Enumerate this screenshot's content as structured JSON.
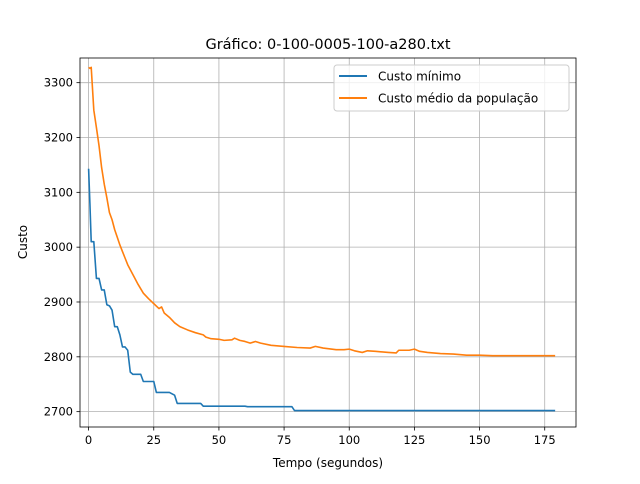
{
  "chart_data": {
    "type": "line",
    "title": "Gráfico: 0-100-0005-100-a280.txt",
    "xlabel": "Tempo (segundos)",
    "ylabel": "Custo",
    "xlim": [
      -3.3,
      187
    ],
    "ylim": [
      2672,
      3345
    ],
    "xticks": [
      0,
      25,
      50,
      75,
      100,
      125,
      150,
      175
    ],
    "xtick_labels": [
      "0",
      "25",
      "50",
      "75",
      "100",
      "125",
      "150",
      "175"
    ],
    "yticks": [
      2700,
      2800,
      2900,
      3000,
      3100,
      3200,
      3300
    ],
    "ytick_labels": [
      "2700",
      "2800",
      "2900",
      "3000",
      "3100",
      "3200",
      "3300"
    ],
    "grid": true,
    "legend_position": "upper right",
    "series": [
      {
        "name": "Custo mínimo",
        "color": "#1f77b4",
        "points": [
          [
            0,
            3143
          ],
          [
            0.5,
            3080
          ],
          [
            1,
            3010
          ],
          [
            2,
            3010
          ],
          [
            3,
            2943
          ],
          [
            4,
            2943
          ],
          [
            5,
            2922
          ],
          [
            6,
            2922
          ],
          [
            7,
            2895
          ],
          [
            8,
            2893
          ],
          [
            9,
            2885
          ],
          [
            10,
            2855
          ],
          [
            11,
            2855
          ],
          [
            12,
            2840
          ],
          [
            13,
            2818
          ],
          [
            14,
            2818
          ],
          [
            15,
            2812
          ],
          [
            16,
            2772
          ],
          [
            17,
            2768
          ],
          [
            20,
            2768
          ],
          [
            21,
            2755
          ],
          [
            25,
            2755
          ],
          [
            26,
            2735
          ],
          [
            31,
            2735
          ],
          [
            33,
            2730
          ],
          [
            34,
            2715
          ],
          [
            43,
            2715
          ],
          [
            44,
            2710
          ],
          [
            60,
            2710
          ],
          [
            61,
            2709
          ],
          [
            78,
            2709
          ],
          [
            79,
            2702
          ],
          [
            179,
            2702
          ]
        ]
      },
      {
        "name": "Custo médio da população",
        "color": "#ff7f0e",
        "points": [
          [
            0,
            3328
          ],
          [
            0.5,
            3326
          ],
          [
            1,
            3328
          ],
          [
            2,
            3250
          ],
          [
            3,
            3218
          ],
          [
            4,
            3185
          ],
          [
            5,
            3145
          ],
          [
            6,
            3115
          ],
          [
            7,
            3090
          ],
          [
            8,
            3063
          ],
          [
            9,
            3050
          ],
          [
            10,
            3032
          ],
          [
            11,
            3018
          ],
          [
            12,
            3004
          ],
          [
            13,
            2992
          ],
          [
            14,
            2980
          ],
          [
            15,
            2968
          ],
          [
            17,
            2950
          ],
          [
            19,
            2932
          ],
          [
            21,
            2916
          ],
          [
            23,
            2906
          ],
          [
            25,
            2897
          ],
          [
            27,
            2888
          ],
          [
            28,
            2891
          ],
          [
            29,
            2880
          ],
          [
            31,
            2872
          ],
          [
            33,
            2862
          ],
          [
            35,
            2855
          ],
          [
            38,
            2849
          ],
          [
            41,
            2844
          ],
          [
            44,
            2840
          ],
          [
            45,
            2836
          ],
          [
            47,
            2833
          ],
          [
            50,
            2832
          ],
          [
            52,
            2830
          ],
          [
            55,
            2831
          ],
          [
            56,
            2834
          ],
          [
            58,
            2830
          ],
          [
            60,
            2828
          ],
          [
            62,
            2825
          ],
          [
            64,
            2828
          ],
          [
            66,
            2825
          ],
          [
            70,
            2821
          ],
          [
            75,
            2819
          ],
          [
            80,
            2817
          ],
          [
            85,
            2816
          ],
          [
            87,
            2819
          ],
          [
            90,
            2816
          ],
          [
            95,
            2813
          ],
          [
            98,
            2813
          ],
          [
            100,
            2814
          ],
          [
            102,
            2811
          ],
          [
            105,
            2808
          ],
          [
            107,
            2811
          ],
          [
            110,
            2810
          ],
          [
            115,
            2808
          ],
          [
            118,
            2807
          ],
          [
            119,
            2812
          ],
          [
            123,
            2812
          ],
          [
            125,
            2814
          ],
          [
            127,
            2810
          ],
          [
            130,
            2808
          ],
          [
            135,
            2806
          ],
          [
            140,
            2805
          ],
          [
            145,
            2803
          ],
          [
            150,
            2803
          ],
          [
            155,
            2802
          ],
          [
            160,
            2802
          ],
          [
            170,
            2802
          ],
          [
            179,
            2802
          ]
        ]
      }
    ]
  }
}
